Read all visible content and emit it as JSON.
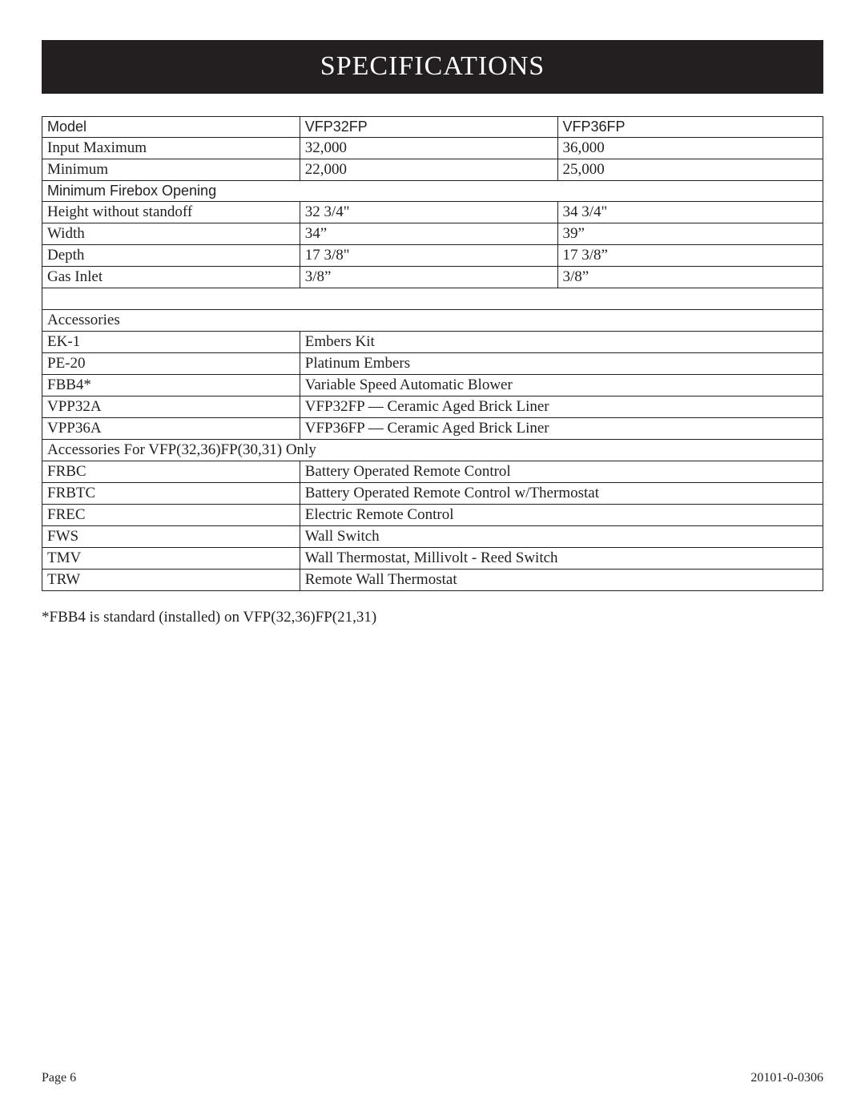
{
  "title": "SPECIFICATIONS",
  "table": {
    "rows": [
      {
        "type": "three",
        "sans": true,
        "c1": "Model",
        "c2": "VFP32FP",
        "c3": "VFP36FP"
      },
      {
        "type": "three",
        "sans": false,
        "c1": "Input   Maximum",
        "c2": "32,000",
        "c3": "36,000"
      },
      {
        "type": "three",
        "sans": false,
        "c1": "Minimum",
        "c2": "22,000",
        "c3": "25,000"
      },
      {
        "type": "full",
        "sans": true,
        "text": "Minimum Firebox Opening"
      },
      {
        "type": "three",
        "sans": false,
        "c1": "Height without standoff",
        "c2": "32 3/4\"",
        "c3": "34 3/4\""
      },
      {
        "type": "three",
        "sans": false,
        "c1": "Width",
        "c2": "34”",
        "c3": "39”"
      },
      {
        "type": "three",
        "sans": false,
        "c1": "Depth",
        "c2": "17 3/8\"",
        "c3": "17 3/8”"
      },
      {
        "type": "three",
        "sans": false,
        "c1": "Gas Inlet",
        "c2": "3/8”",
        "c3": "3/8”"
      },
      {
        "type": "full",
        "sans": false,
        "text": " "
      },
      {
        "type": "full",
        "sans": false,
        "text": "Accessories"
      },
      {
        "type": "two",
        "sans": false,
        "c1": "EK-1",
        "c2": "Embers Kit"
      },
      {
        "type": "two",
        "sans": false,
        "c1": "PE-20",
        "c2": "Platinum Embers"
      },
      {
        "type": "two",
        "sans": false,
        "c1": "FBB4*",
        "c2": "Variable Speed Automatic Blower"
      },
      {
        "type": "two",
        "sans": false,
        "c1": "VPP32A",
        "c2": "VFP32FP — Ceramic Aged Brick Liner"
      },
      {
        "type": "two",
        "sans": false,
        "c1": "VPP36A",
        "c2": "VFP36FP — Ceramic Aged Brick Liner"
      },
      {
        "type": "full",
        "sans": false,
        "text": "Accessories For VFP(32,36)FP(30,31) Only"
      },
      {
        "type": "two",
        "sans": false,
        "c1": "FRBC",
        "c2": "Battery Operated Remote Control"
      },
      {
        "type": "two",
        "sans": false,
        "c1": "FRBTC",
        "c2": "Battery Operated Remote Control w/Thermostat"
      },
      {
        "type": "two",
        "sans": false,
        "c1": "FREC",
        "c2": "Electric Remote Control"
      },
      {
        "type": "two",
        "sans": false,
        "c1": "FWS",
        "c2": "Wall Switch"
      },
      {
        "type": "two",
        "sans": false,
        "c1": "TMV",
        "c2": "Wall Thermostat, Millivolt - Reed Switch"
      },
      {
        "type": "two",
        "sans": false,
        "c1": "TRW",
        "c2": "Remote Wall Thermostat"
      }
    ]
  },
  "footnote": "*FBB4 is standard (installed) on VFP(32,36)FP(21,31)",
  "footer": {
    "left": "Page 6",
    "right": "20101-0-0306"
  }
}
